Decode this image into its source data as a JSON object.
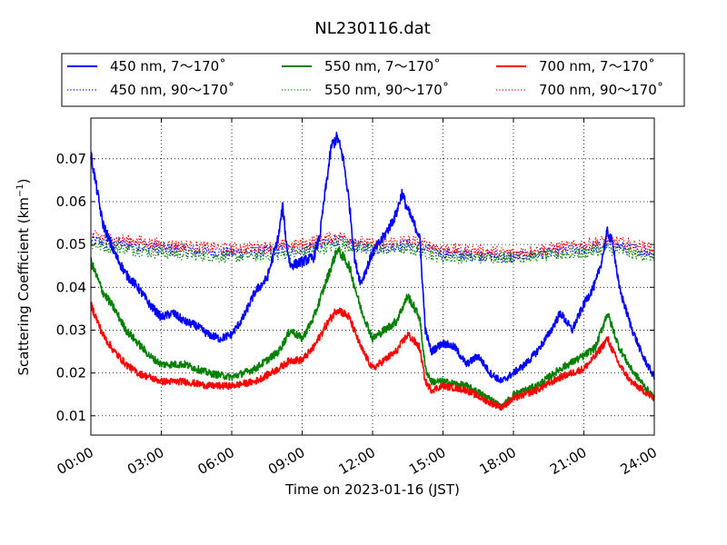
{
  "chart_data": {
    "type": "line",
    "title": "NL230116.dat",
    "xlabel": "Time on 2023-01-16 (JST)",
    "ylabel_main": "Scattering Coefficient (km",
    "ylabel_sup": "−1",
    "ylabel_end": ")",
    "xlim": [
      "00:00",
      "24:00"
    ],
    "ylim": [
      0.0055,
      0.0795
    ],
    "grid": true,
    "legend_position": "top, above plot, 3 columns",
    "xticks": [
      "00:00",
      "03:00",
      "06:00",
      "09:00",
      "12:00",
      "15:00",
      "18:00",
      "21:00",
      "24:00"
    ],
    "yticks": [
      "0.01",
      "0.02",
      "0.03",
      "0.04",
      "0.05",
      "0.06",
      "0.07"
    ],
    "series": [
      {
        "name": "450 nm, 7～170˚",
        "color": "#0000ff",
        "style": "solid",
        "x": [
          "00:00",
          "00:15",
          "00:30",
          "01:00",
          "01:30",
          "02:00",
          "02:30",
          "03:00",
          "03:30",
          "04:00",
          "04:30",
          "05:00",
          "05:30",
          "06:00",
          "06:30",
          "07:00",
          "07:30",
          "08:00",
          "08:10",
          "08:20",
          "08:30",
          "09:00",
          "09:30",
          "09:45",
          "10:00",
          "10:15",
          "10:30",
          "10:45",
          "11:00",
          "11:15",
          "11:30",
          "12:00",
          "12:30",
          "13:00",
          "13:15",
          "13:30",
          "13:45",
          "14:00",
          "14:15",
          "14:30",
          "15:00",
          "15:30",
          "16:00",
          "16:30",
          "17:00",
          "17:30",
          "18:00",
          "18:30",
          "19:00",
          "19:30",
          "20:00",
          "20:30",
          "21:00",
          "21:30",
          "21:45",
          "22:00",
          "22:15",
          "22:30",
          "23:00",
          "23:30",
          "24:00"
        ],
        "values": [
          0.071,
          0.063,
          0.055,
          0.048,
          0.043,
          0.04,
          0.036,
          0.033,
          0.034,
          0.032,
          0.031,
          0.029,
          0.028,
          0.029,
          0.033,
          0.039,
          0.042,
          0.052,
          0.059,
          0.05,
          0.045,
          0.046,
          0.047,
          0.052,
          0.063,
          0.073,
          0.075,
          0.07,
          0.06,
          0.046,
          0.041,
          0.048,
          0.052,
          0.057,
          0.062,
          0.058,
          0.055,
          0.052,
          0.03,
          0.025,
          0.027,
          0.026,
          0.022,
          0.024,
          0.02,
          0.018,
          0.02,
          0.022,
          0.025,
          0.029,
          0.034,
          0.03,
          0.036,
          0.041,
          0.046,
          0.053,
          0.05,
          0.04,
          0.031,
          0.024,
          0.019
        ]
      },
      {
        "name": "450 nm, 90～170˚",
        "color": "#0000ff",
        "style": "dotted",
        "x": [
          "00:00",
          "03:00",
          "06:00",
          "09:00",
          "10:30",
          "12:00",
          "13:30",
          "15:00",
          "18:00",
          "21:00",
          "22:00",
          "24:00"
        ],
        "values": [
          0.051,
          0.049,
          0.048,
          0.049,
          0.051,
          0.049,
          0.05,
          0.048,
          0.047,
          0.049,
          0.05,
          0.048
        ]
      },
      {
        "name": "550 nm, 7～170˚",
        "color": "#008000",
        "style": "solid",
        "x": [
          "00:00",
          "00:30",
          "01:00",
          "01:30",
          "02:00",
          "02:30",
          "03:00",
          "04:00",
          "05:00",
          "06:00",
          "07:00",
          "08:00",
          "08:30",
          "09:00",
          "09:30",
          "10:00",
          "10:30",
          "11:00",
          "11:30",
          "12:00",
          "12:30",
          "13:00",
          "13:30",
          "14:00",
          "14:15",
          "14:30",
          "15:00",
          "16:00",
          "17:00",
          "17:30",
          "18:00",
          "19:00",
          "20:00",
          "21:00",
          "21:30",
          "22:00",
          "22:30",
          "23:00",
          "24:00"
        ],
        "values": [
          0.046,
          0.039,
          0.035,
          0.03,
          0.027,
          0.024,
          0.022,
          0.022,
          0.02,
          0.019,
          0.021,
          0.025,
          0.03,
          0.028,
          0.033,
          0.041,
          0.049,
          0.045,
          0.035,
          0.028,
          0.03,
          0.032,
          0.038,
          0.033,
          0.021,
          0.018,
          0.018,
          0.017,
          0.014,
          0.012,
          0.015,
          0.017,
          0.021,
          0.024,
          0.026,
          0.034,
          0.026,
          0.021,
          0.014
        ]
      },
      {
        "name": "550 nm, 90～170˚",
        "color": "#008000",
        "style": "dotted",
        "x": [
          "00:00",
          "03:00",
          "06:00",
          "09:00",
          "10:30",
          "12:00",
          "13:30",
          "15:00",
          "18:00",
          "21:00",
          "22:00",
          "24:00"
        ],
        "values": [
          0.05,
          0.048,
          0.047,
          0.048,
          0.05,
          0.049,
          0.049,
          0.047,
          0.047,
          0.048,
          0.049,
          0.047
        ]
      },
      {
        "name": "700 nm, 7～170˚",
        "color": "#ff0000",
        "style": "solid",
        "x": [
          "00:00",
          "00:30",
          "01:00",
          "01:30",
          "02:00",
          "02:30",
          "03:00",
          "04:00",
          "05:00",
          "06:00",
          "07:00",
          "08:00",
          "08:30",
          "09:00",
          "09:30",
          "10:00",
          "10:30",
          "11:00",
          "11:30",
          "12:00",
          "12:30",
          "13:00",
          "13:30",
          "14:00",
          "14:15",
          "14:30",
          "15:00",
          "16:00",
          "17:00",
          "17:30",
          "18:00",
          "19:00",
          "20:00",
          "21:00",
          "21:30",
          "22:00",
          "22:30",
          "23:00",
          "24:00"
        ],
        "values": [
          0.036,
          0.029,
          0.025,
          0.022,
          0.02,
          0.019,
          0.018,
          0.018,
          0.017,
          0.017,
          0.018,
          0.021,
          0.023,
          0.023,
          0.026,
          0.031,
          0.035,
          0.033,
          0.026,
          0.021,
          0.023,
          0.025,
          0.029,
          0.026,
          0.018,
          0.016,
          0.017,
          0.016,
          0.013,
          0.012,
          0.014,
          0.016,
          0.019,
          0.021,
          0.024,
          0.028,
          0.022,
          0.018,
          0.014
        ]
      },
      {
        "name": "700 nm, 90～170˚",
        "color": "#ff0000",
        "style": "dotted",
        "x": [
          "00:00",
          "03:00",
          "06:00",
          "09:00",
          "10:30",
          "12:00",
          "13:30",
          "15:00",
          "18:00",
          "21:00",
          "22:00",
          "24:00"
        ],
        "values": [
          0.052,
          0.05,
          0.049,
          0.05,
          0.052,
          0.05,
          0.051,
          0.049,
          0.048,
          0.05,
          0.051,
          0.049
        ]
      }
    ]
  }
}
